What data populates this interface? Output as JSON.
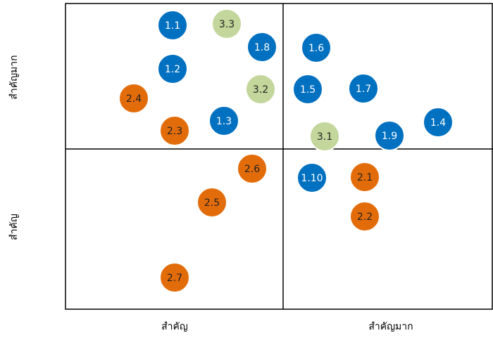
{
  "axes": {
    "y_top": "สำคัญมาก",
    "y_bottom": "สำคัญ",
    "x_left": "สำคัญ",
    "x_right": "สำคัญมาก"
  },
  "nodes": [
    {
      "label": "1.1",
      "color": "#0070c0"
    },
    {
      "label": "3.3",
      "color": "#c3d69b"
    },
    {
      "label": "1.8",
      "color": "#0070c0"
    },
    {
      "label": "1.6",
      "color": "#0070c0"
    },
    {
      "label": "1.2",
      "color": "#0070c0"
    },
    {
      "label": "2.4",
      "color": "#e36c0a"
    },
    {
      "label": "3.2",
      "color": "#c3d69b"
    },
    {
      "label": "1.5",
      "color": "#0070c0"
    },
    {
      "label": "1.7",
      "color": "#0070c0"
    },
    {
      "label": "1.3",
      "color": "#0070c0"
    },
    {
      "label": "2.3",
      "color": "#e36c0a"
    },
    {
      "label": "3.1",
      "color": "#c3d69b"
    },
    {
      "label": "1.9",
      "color": "#0070c0"
    },
    {
      "label": "1.4",
      "color": "#0070c0"
    },
    {
      "label": "2.6",
      "color": "#e36c0a"
    },
    {
      "label": "1.10",
      "color": "#0070c0"
    },
    {
      "label": "2.1",
      "color": "#e36c0a"
    },
    {
      "label": "2.2",
      "color": "#e36c0a"
    },
    {
      "label": "2.5",
      "color": "#e36c0a"
    },
    {
      "label": "2.7",
      "color": "#e36c0a"
    }
  ]
}
